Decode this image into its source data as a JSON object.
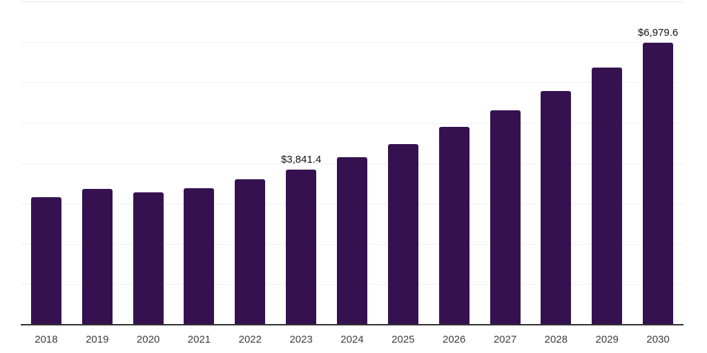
{
  "chart_data": {
    "type": "bar",
    "title": "",
    "xlabel": "",
    "ylabel": "",
    "categories": [
      "2018",
      "2019",
      "2020",
      "2021",
      "2022",
      "2023",
      "2024",
      "2025",
      "2026",
      "2027",
      "2028",
      "2029",
      "2030"
    ],
    "values": [
      3160,
      3365,
      3280,
      3385,
      3605,
      3841.4,
      4150,
      4470,
      4895,
      5305,
      5780,
      6360,
      6979.6
    ],
    "data_labels": [
      "",
      "",
      "",
      "",
      "",
      "$3,841.4",
      "",
      "",
      "",
      "",
      "",
      "",
      "$6,979.6"
    ],
    "ylim": [
      0,
      8000
    ],
    "gridline_step": 1000,
    "grid": true,
    "legend": "none",
    "bar_color": "#35124F",
    "axis_color": "#2f2f2f",
    "gridline_color": "#f0f0f0",
    "label_color": "#111111",
    "tick_label_color": "#3d3d3d"
  }
}
